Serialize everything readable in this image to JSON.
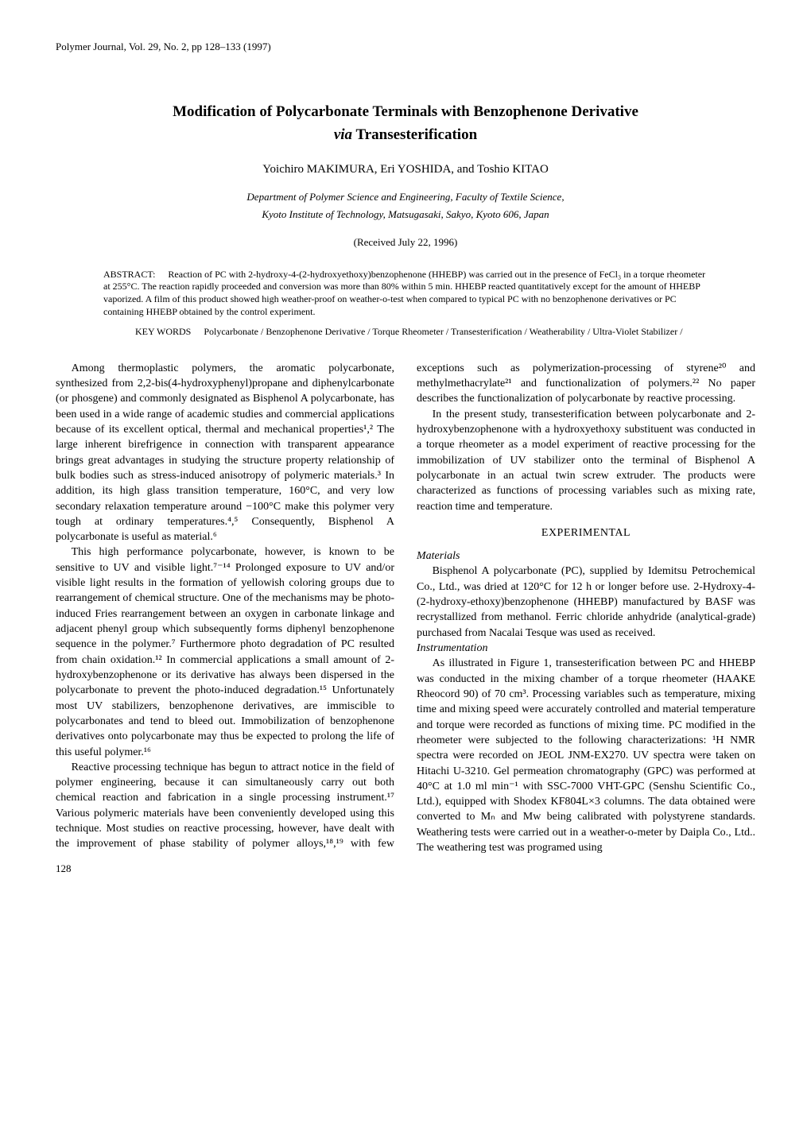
{
  "journal_header": "Polymer Journal, Vol. 29, No. 2, pp 128–133 (1997)",
  "title_line1": "Modification of Polycarbonate Terminals with Benzophenone Derivative",
  "title_via": "via",
  "title_line2_rest": " Transesterification",
  "authors": "Yoichiro MAKIMURA, Eri YOSHIDA, and Toshio KITAO",
  "affiliation_line1": "Department of Polymer Science and Engineering, Faculty of Textile Science,",
  "affiliation_line2": "Kyoto Institute of Technology, Matsugasaki, Sakyo, Kyoto 606, Japan",
  "received": "(Received July 22, 1996)",
  "abstract_label": "ABSTRACT:",
  "abstract_text": "Reaction of PC with 2-hydroxy-4-(2-hydroxyethoxy)benzophenone (HHEBP) was carried out in the presence of FeCl₃ in a torque rheometer at 255°C. The reaction rapidly proceeded and conversion was more than 80% within 5 min. HHEBP reacted quantitatively except for the amount of HHEBP vaporized. A film of this product showed high weather-proof on weather-o-test when compared to typical PC with no benzophenone derivatives or PC containing HHEBP obtained by the control experiment.",
  "keywords_label": "KEY WORDS",
  "keywords_text": "Polycarbonate / Benzophenone Derivative / Torque Rheometer / Transesterification / Weatherability / Ultra-Violet Stabilizer /",
  "body": {
    "p1": "Among thermoplastic polymers, the aromatic polycarbonate, synthesized from 2,2-bis(4-hydroxyphenyl)propane and diphenylcarbonate (or phosgene) and commonly designated as Bisphenol A polycarbonate, has been used in a wide range of academic studies and commercial applications because of its excellent optical, thermal and mechanical properties¹,² The large inherent birefrigence in connection with transparent appearance brings great advantages in studying the structure property relationship of bulk bodies such as stress-induced anisotropy of polymeric materials.³ In addition, its high glass transition temperature, 160°C, and very low secondary relaxation temperature around −100°C make this polymer very tough at ordinary temperatures.⁴,⁵ Consequently, Bisphenol A polycarbonate is useful as material.⁶",
    "p2": "This high performance polycarbonate, however, is known to be sensitive to UV and visible light.⁷⁻¹⁴ Prolonged exposure to UV and/or visible light results in the formation of yellowish coloring groups due to rearrangement of chemical structure. One of the mechanisms may be photo-induced Fries rearrangement between an oxygen in carbonate linkage and adjacent phenyl group which subsequently forms diphenyl benzophenone sequence in the polymer.⁷ Furthermore photo degradation of PC resulted from chain oxidation.¹² In commercial applications a small amount of 2-hydroxybenzophenone or its derivative has always been dispersed in the polycarbonate to prevent the photo-induced degradation.¹⁵ Unfortunately most UV stabilizers, benzophenone derivatives, are immiscible to polycarbonates and tend to bleed out. Immobilization of benzophenone derivatives onto polycarbonate may thus be expected to prolong the life of this useful polymer.¹⁶",
    "p3": "Reactive processing technique has begun to attract notice in the field of polymer engineering, because it can simultaneously carry out both chemical reaction and fabrication in a single processing instrument.¹⁷ Various polymeric materials have been conveniently developed using this technique. Most studies on reactive processing, however, have dealt with the improvement of phase stability of polymer alloys,¹⁸,¹⁹ with few exceptions such as polymerization-processing of styrene²⁰ and methylmethacrylate²¹ and functionalization of polymers.²² No paper describes the functionalization of polycarbonate by reactive processing.",
    "p4": "In the present study, transesterification between polycarbonate and 2-hydroxybenzophenone with a hydroxyethoxy substituent was conducted in a torque rheometer as a model experiment of reactive processing for the immobilization of UV stabilizer onto the terminal of Bisphenol A polycarbonate in an actual twin screw extruder. The products were characterized as functions of processing variables such as mixing rate, reaction time and temperature.",
    "experimental_heading": "EXPERIMENTAL",
    "materials_heading": "Materials",
    "p5": "Bisphenol A polycarbonate (PC), supplied by Idemitsu Petrochemical Co., Ltd., was dried at 120°C for 12 h or longer before use. 2-Hydroxy-4-(2-hydroxy-ethoxy)benzophenone (HHEBP) manufactured by BASF was recrystallized from methanol. Ferric chloride anhydride (analytical-grade) purchased from Nacalai Tesque was used as received.",
    "instrumentation_heading": "Instrumentation",
    "p6": "As illustrated in Figure 1, transesterification between PC and HHEBP was conducted in the mixing chamber of a torque rheometer (HAAKE Rheocord 90) of 70 cm³. Processing variables such as temperature, mixing time and mixing speed were accurately controlled and material temperature and torque were recorded as functions of mixing time. PC modified in the rheometer were subjected to the following characterizations: ¹H NMR spectra were recorded on JEOL JNM-EX270. UV spectra were taken on Hitachi U-3210. Gel permeation chromatography (GPC) was performed at 40°C at 1.0 ml min⁻¹ with SSC-7000 VHT-GPC (Senshu Scientific Co., Ltd.), equipped with Shodex KF804L×3 columns. The data obtained were converted to Mₙ and Mw being calibrated with polystyrene standards. Weathering tests were carried out in a weather-o-meter by Daipla Co., Ltd.. The weathering test was programed using"
  },
  "page_number": "128"
}
